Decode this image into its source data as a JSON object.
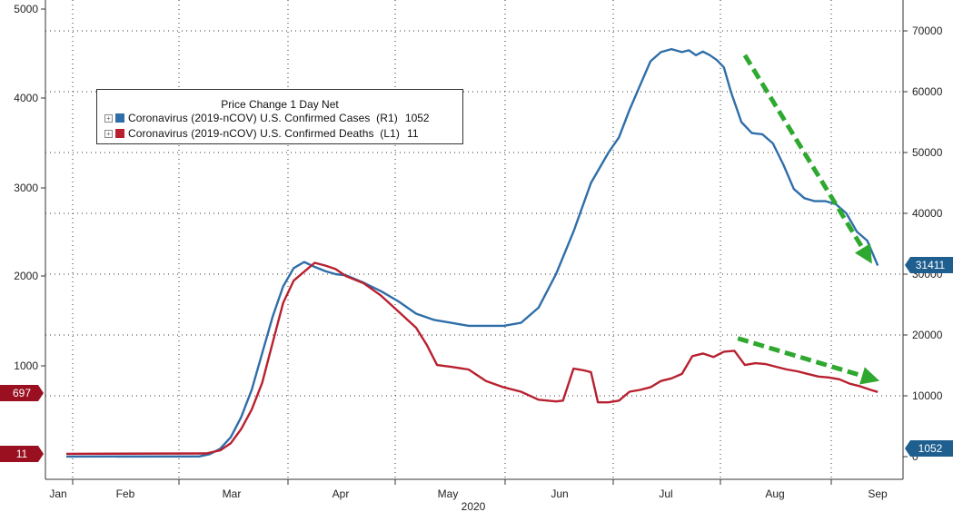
{
  "legend": {
    "title": "Price Change 1 Day Net",
    "cases_label": "Coronavirus (2019-nCOV) U.S. Confirmed Cases",
    "cases_axis": "(R1)",
    "cases_value": "1052",
    "deaths_label": "Coronavirus (2019-nCOV) U.S. Confirmed Deaths",
    "deaths_axis": "(L1)",
    "deaths_value": "11"
  },
  "colors": {
    "cases": "#2f6ea8",
    "deaths": "#b8202f",
    "arrow": "#2ea82e",
    "right_axis": "#1f5f8f",
    "left_axis": "#9a1020",
    "grid": "#333333"
  },
  "markers": {
    "left_697": "697",
    "left_11": "11",
    "right_31411": "31411",
    "right_1052": "1052"
  },
  "chart_data": {
    "type": "line",
    "x_unit": "days since Jan 22, 2020",
    "x_ticks": [
      "Jan",
      "Feb",
      "Mar",
      "Apr",
      "May",
      "Jun",
      "Jul",
      "Aug",
      "Sep"
    ],
    "x_year_label": "2020",
    "left_axis": {
      "ticks": [
        "1000",
        "2000",
        "3000",
        "4000",
        "5000"
      ],
      "ylim": [
        -100,
        5000
      ]
    },
    "right_axis": {
      "ticks": [
        "0",
        "10000",
        "20000",
        "30000",
        "40000",
        "50000",
        "60000",
        "70000"
      ],
      "ylim": [
        -400,
        76000
      ]
    },
    "grid": true,
    "series": [
      {
        "name": "Coronavirus (2019-nCOV) U.S. Confirmed Cases",
        "axis": "right",
        "x": [
          0,
          38,
          41,
          44,
          47,
          50,
          53,
          56,
          59,
          62,
          65,
          68,
          71,
          74,
          77,
          80,
          85,
          90,
          95,
          100,
          105,
          110,
          115,
          120,
          125,
          130,
          135,
          140,
          145,
          150,
          155,
          158,
          161,
          164,
          167,
          170,
          173,
          176,
          178,
          180,
          182,
          184,
          186,
          188,
          190,
          193,
          196,
          199,
          202,
          205,
          208,
          211,
          214,
          217,
          220,
          223,
          226,
          229,
          232
        ],
        "y": [
          10,
          30,
          400,
          1300,
          3200,
          6500,
          11000,
          17000,
          23000,
          28000,
          31000,
          32000,
          31200,
          30500,
          30000,
          29800,
          28600,
          27200,
          25500,
          23500,
          22500,
          22000,
          21500,
          21500,
          21500,
          22000,
          24500,
          30000,
          37000,
          45000,
          50000,
          52500,
          57000,
          61000,
          65000,
          66500,
          67000,
          66500,
          66800,
          66000,
          66600,
          66000,
          65200,
          64000,
          60000,
          55000,
          53200,
          53000,
          51500,
          48000,
          44000,
          42500,
          42000,
          42000,
          41500,
          40000,
          37000,
          35500,
          31411
        ]
      },
      {
        "name": "Coronavirus (2019-nCOV) U.S. Confirmed Deaths",
        "axis": "left",
        "x": [
          0,
          40,
          44,
          47,
          50,
          53,
          56,
          59,
          62,
          65,
          68,
          71,
          74,
          77,
          80,
          85,
          90,
          95,
          100,
          103,
          106,
          110,
          115,
          120,
          125,
          130,
          135,
          140,
          142,
          145,
          148,
          150,
          152,
          155,
          158,
          161,
          164,
          167,
          170,
          173,
          176,
          179,
          182,
          185,
          188,
          191,
          194,
          197,
          200,
          203,
          206,
          209,
          212,
          215,
          218,
          221,
          224,
          227,
          230,
          232
        ],
        "y": [
          1,
          5,
          40,
          120,
          280,
          500,
          800,
          1250,
          1700,
          1950,
          2050,
          2150,
          2120,
          2080,
          2000,
          1920,
          1780,
          1600,
          1420,
          1230,
          1000,
          980,
          950,
          820,
          750,
          700,
          610,
          590,
          600,
          960,
          940,
          920,
          580,
          580,
          600,
          700,
          720,
          750,
          820,
          850,
          900,
          1100,
          1130,
          1090,
          1150,
          1160,
          1000,
          1020,
          1010,
          980,
          950,
          930,
          900,
          870,
          860,
          840,
          790,
          760,
          720,
          697
        ]
      }
    ],
    "annotations": [
      {
        "type": "arrow",
        "series": "cases",
        "from": [
          194,
          66000
        ],
        "to": [
          229,
          33000
        ]
      },
      {
        "type": "arrow",
        "series": "deaths",
        "from": [
          192,
          1300
        ],
        "to": [
          230,
          850
        ]
      }
    ]
  }
}
